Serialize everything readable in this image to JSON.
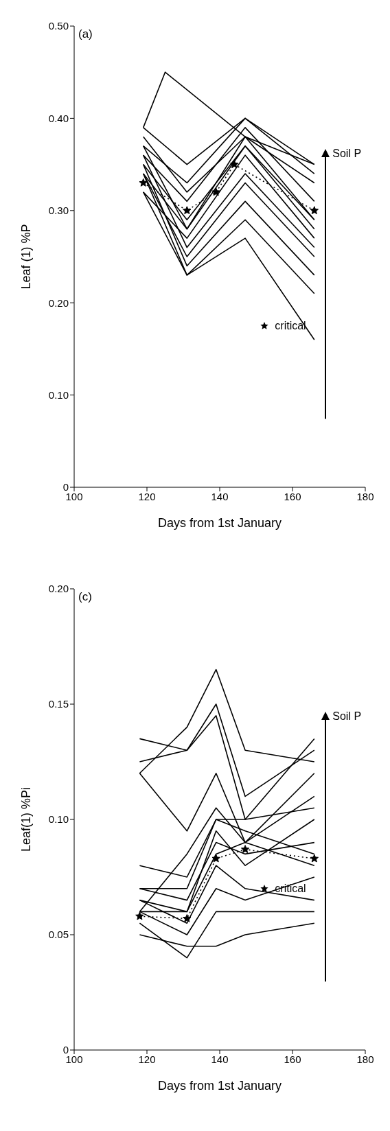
{
  "chart_data": [
    {
      "type": "line",
      "xlabel": "Days from 1st January",
      "ylabel": "Leaf (1) %P",
      "xlim": [
        100,
        180
      ],
      "xticks": [
        100,
        120,
        140,
        160,
        180
      ],
      "ylim": [
        0,
        0.5
      ],
      "yticks": [
        0,
        {
          "value": 0.1,
          "label": "0.10"
        },
        {
          "value": 0.2,
          "label": "0.20"
        },
        {
          "value": 0.3,
          "label": "0.30"
        },
        {
          "value": 0.4,
          "label": "0.40"
        },
        {
          "value": 0.5,
          "label": "0.50"
        }
      ],
      "marker": "none",
      "line_style": "solid",
      "legend": "bottom right",
      "annotations": [
        "(a)",
        "Soil P"
      ],
      "series": [
        {
          "color": "#000000",
          "x": [
            119,
            131,
            147,
            166
          ],
          "values": [
            0.32,
            0.23,
            0.27,
            0.16
          ]
        },
        {
          "color": "#000000",
          "x": [
            119,
            131,
            147,
            166
          ],
          "values": [
            0.34,
            0.23,
            0.29,
            0.21
          ]
        },
        {
          "color": "#000000",
          "x": [
            119,
            131,
            147,
            166
          ],
          "values": [
            0.35,
            0.24,
            0.31,
            0.23
          ]
        },
        {
          "color": "#000000",
          "x": [
            119,
            131,
            147,
            166
          ],
          "values": [
            0.34,
            0.25,
            0.33,
            0.25
          ]
        },
        {
          "color": "#000000",
          "x": [
            119,
            131,
            147,
            166
          ],
          "values": [
            0.36,
            0.26,
            0.34,
            0.26
          ]
        },
        {
          "color": "#000000",
          "x": [
            119,
            131,
            147,
            166
          ],
          "values": [
            0.32,
            0.27,
            0.36,
            0.27
          ]
        },
        {
          "color": "#000000",
          "x": [
            119,
            131,
            147,
            166
          ],
          "values": [
            0.35,
            0.29,
            0.37,
            0.28
          ]
        },
        {
          "color": "#000000",
          "x": [
            119,
            131,
            147,
            166
          ],
          "values": [
            0.37,
            0.28,
            0.38,
            0.29
          ]
        },
        {
          "color": "#000000",
          "x": [
            119,
            131,
            147,
            166
          ],
          "values": [
            0.34,
            0.28,
            0.37,
            0.29
          ]
        },
        {
          "color": "#000000",
          "x": [
            119,
            131,
            147,
            166
          ],
          "values": [
            0.36,
            0.31,
            0.39,
            0.31
          ]
        },
        {
          "color": "#000000",
          "x": [
            119,
            131,
            147,
            166
          ],
          "values": [
            0.38,
            0.32,
            0.38,
            0.33
          ]
        },
        {
          "color": "#000000",
          "x": [
            119,
            131,
            147,
            166
          ],
          "values": [
            0.37,
            0.33,
            0.4,
            0.34
          ]
        },
        {
          "color": "#000000",
          "x": [
            119,
            131,
            147,
            166
          ],
          "values": [
            0.39,
            0.35,
            0.4,
            0.35
          ]
        },
        {
          "color": "#000000",
          "x": [
            119,
            125,
            147,
            166
          ],
          "values": [
            0.39,
            0.45,
            0.38,
            0.35
          ]
        },
        {
          "name": "critical",
          "color": "#000000",
          "marker": "star",
          "line_style": "dotted",
          "x": [
            119,
            131,
            139,
            144,
            166
          ],
          "values": [
            0.33,
            0.3,
            0.32,
            0.35,
            0.3
          ]
        }
      ]
    },
    {
      "type": "line",
      "xlabel": "Days from 1st January",
      "ylabel": "Leaf(1) %Pi",
      "xlim": [
        100,
        180
      ],
      "xticks": [
        100,
        120,
        140,
        160,
        180
      ],
      "ylim": [
        0,
        0.2
      ],
      "yticks": [
        0,
        0.05,
        {
          "value": 0.1,
          "label": "0.10"
        },
        0.15,
        {
          "value": 0.2,
          "label": "0.20"
        }
      ],
      "marker": "none",
      "line_style": "solid",
      "legend": "bottom right",
      "annotations": [
        "(c)",
        "Soil P"
      ],
      "series": [
        {
          "color": "#000000",
          "x": [
            118,
            131,
            139,
            147,
            166
          ],
          "values": [
            0.05,
            0.045,
            0.045,
            0.05,
            0.055
          ]
        },
        {
          "color": "#000000",
          "x": [
            118,
            131,
            139,
            147,
            166
          ],
          "values": [
            0.055,
            0.04,
            0.06,
            0.06,
            0.06
          ]
        },
        {
          "color": "#000000",
          "x": [
            118,
            131,
            139,
            147,
            166
          ],
          "values": [
            0.06,
            0.05,
            0.07,
            0.065,
            0.075
          ]
        },
        {
          "color": "#000000",
          "x": [
            118,
            131,
            139,
            147,
            166
          ],
          "values": [
            0.065,
            0.055,
            0.08,
            0.07,
            0.065
          ]
        },
        {
          "color": "#000000",
          "x": [
            118,
            131,
            139,
            147,
            166
          ],
          "values": [
            0.06,
            0.06,
            0.085,
            0.09,
            0.08
          ]
        },
        {
          "color": "#000000",
          "x": [
            118,
            131,
            139,
            147,
            166
          ],
          "values": [
            0.07,
            0.065,
            0.09,
            0.085,
            0.09
          ]
        },
        {
          "color": "#000000",
          "x": [
            118,
            131,
            139,
            147,
            166
          ],
          "values": [
            0.065,
            0.06,
            0.095,
            0.08,
            0.1
          ]
        },
        {
          "color": "#000000",
          "x": [
            118,
            131,
            139,
            147,
            166
          ],
          "values": [
            0.07,
            0.07,
            0.1,
            0.095,
            0.085
          ]
        },
        {
          "color": "#000000",
          "x": [
            118,
            131,
            139,
            147,
            166
          ],
          "values": [
            0.08,
            0.075,
            0.1,
            0.1,
            0.105
          ]
        },
        {
          "color": "#000000",
          "x": [
            118,
            131,
            139,
            147,
            166
          ],
          "values": [
            0.06,
            0.085,
            0.105,
            0.09,
            0.11
          ]
        },
        {
          "color": "#000000",
          "x": [
            118,
            131,
            139,
            147,
            166
          ],
          "values": [
            0.12,
            0.095,
            0.12,
            0.09,
            0.12
          ]
        },
        {
          "color": "#000000",
          "x": [
            118,
            131,
            139,
            147,
            166
          ],
          "values": [
            0.125,
            0.13,
            0.145,
            0.1,
            0.135
          ]
        },
        {
          "color": "#000000",
          "x": [
            118,
            131,
            139,
            147,
            166
          ],
          "values": [
            0.12,
            0.14,
            0.165,
            0.13,
            0.125
          ]
        },
        {
          "color": "#000000",
          "x": [
            118,
            131,
            139,
            147,
            166
          ],
          "values": [
            0.135,
            0.13,
            0.15,
            0.11,
            0.13
          ]
        },
        {
          "name": "critical",
          "color": "#000000",
          "marker": "star",
          "line_style": "dotted",
          "x": [
            118,
            131,
            139,
            147,
            166
          ],
          "values": [
            0.058,
            0.057,
            0.083,
            0.087,
            0.083
          ]
        }
      ]
    }
  ]
}
